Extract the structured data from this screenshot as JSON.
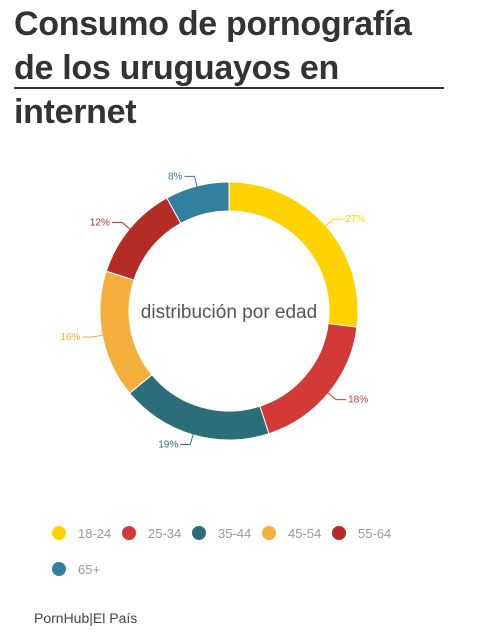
{
  "header": {
    "title": "Consumo de pornografía de los uruguayos en internet"
  },
  "chart_data": {
    "type": "pie",
    "donut": true,
    "center_label": "distribución por edad",
    "categories": [
      "18-24",
      "25-34",
      "35-44",
      "45-54",
      "55-64",
      "65+"
    ],
    "values": [
      27,
      18,
      19,
      16,
      12,
      8
    ],
    "value_labels": [
      "27%",
      "18%",
      "19%",
      "16%",
      "12%",
      "8%"
    ],
    "colors": [
      "#FFD200",
      "#D23A37",
      "#2B6E7A",
      "#F4AE3B",
      "#B32D26",
      "#337F9E"
    ],
    "legend_position": "bottom"
  },
  "footer": {
    "source": "PornHub|El País"
  }
}
